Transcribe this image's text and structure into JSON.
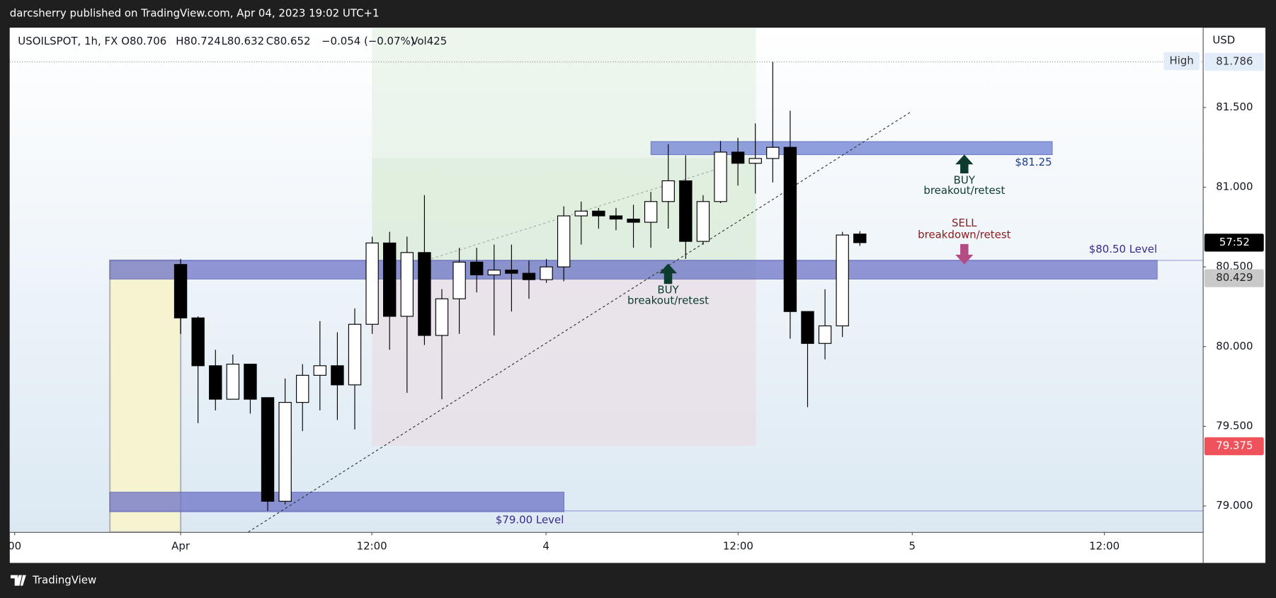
{
  "header": {
    "publisher": "darcsherry published on TradingView.com, Apr 04, 2023 19:02 UTC+1"
  },
  "legend": {
    "symbol": "USOILSPOT, 1h, FX",
    "open": "O80.706",
    "high": "H80.724",
    "low": "L80.632",
    "close": "C80.652",
    "change": "−0.054 (−0.07%)",
    "volume": "Vol425"
  },
  "footer": {
    "brand": "TradingView"
  },
  "chart_data": {
    "type": "candlestick",
    "y_axis_unit": "USD",
    "x": [
      0,
      1,
      2,
      3,
      4,
      5,
      6,
      7,
      8,
      9,
      10,
      11,
      12,
      13,
      14,
      15,
      16,
      17,
      18,
      19,
      20,
      21,
      22,
      23,
      24,
      25,
      26,
      27,
      28,
      29,
      30,
      31,
      32,
      33,
      34,
      35,
      36,
      37,
      38,
      39
    ],
    "open": [
      80.515,
      80.18,
      79.88,
      79.67,
      79.89,
      79.68,
      79.03,
      79.65,
      79.82,
      79.88,
      79.76,
      80.14,
      80.65,
      80.19,
      80.59,
      80.07,
      80.3,
      80.53,
      80.45,
      80.48,
      80.46,
      80.42,
      80.5,
      80.82,
      80.85,
      80.82,
      80.8,
      80.78,
      80.91,
      81.04,
      80.66,
      80.91,
      81.22,
      81.15,
      81.18,
      81.25,
      80.22,
      80.02,
      80.13,
      80.706
    ],
    "high": [
      80.55,
      80.19,
      79.98,
      79.95,
      79.89,
      79.68,
      79.8,
      79.89,
      80.16,
      80.09,
      80.24,
      80.69,
      80.72,
      80.69,
      80.95,
      80.36,
      80.62,
      80.62,
      80.64,
      80.64,
      80.54,
      80.55,
      80.88,
      80.91,
      80.87,
      80.87,
      80.89,
      80.97,
      81.27,
      81.2,
      80.95,
      81.29,
      81.31,
      81.4,
      81.786,
      81.48,
      80.22,
      80.36,
      80.72,
      80.724
    ],
    "low": [
      80.08,
      79.52,
      79.6,
      79.67,
      79.58,
      78.97,
      79.01,
      79.47,
      79.6,
      79.54,
      79.48,
      80.08,
      79.98,
      79.71,
      80.01,
      79.67,
      80.08,
      80.34,
      80.07,
      80.22,
      80.3,
      80.4,
      80.41,
      80.64,
      80.74,
      80.73,
      80.62,
      80.62,
      80.74,
      80.55,
      80.64,
      80.9,
      81.01,
      80.96,
      81.03,
      80.05,
      79.62,
      79.92,
      80.06,
      80.632
    ],
    "close": [
      80.18,
      79.88,
      79.67,
      79.89,
      79.67,
      79.03,
      79.65,
      79.82,
      79.88,
      79.76,
      80.14,
      80.65,
      80.19,
      80.59,
      80.07,
      80.3,
      80.53,
      80.45,
      80.48,
      80.46,
      80.42,
      80.5,
      80.82,
      80.85,
      80.82,
      80.8,
      80.78,
      80.91,
      81.04,
      80.66,
      80.91,
      81.22,
      81.15,
      81.18,
      81.25,
      80.22,
      80.02,
      80.13,
      80.7,
      80.652
    ],
    "up_color": "#ffffff",
    "down_color": "#000000",
    "xlim": [
      -9.81,
      58.69
    ],
    "xticks": [
      {
        "value": -9.53,
        "label": "00"
      },
      {
        "value": 0,
        "label": "Apr"
      },
      {
        "value": 10.98,
        "label": "12:00"
      },
      {
        "value": 20.98,
        "label": "4"
      },
      {
        "value": 32.01,
        "label": "12:00"
      },
      {
        "value": 42.01,
        "label": "5"
      },
      {
        "value": 53.04,
        "label": "12:00"
      }
    ],
    "ylim": [
      78.837,
      82.0
    ],
    "yticks": [
      {
        "value": 79,
        "label": "79.000"
      },
      {
        "value": 79.5,
        "label": "79.500"
      },
      {
        "value": 80,
        "label": "80.000"
      },
      {
        "value": 80.5,
        "label": "80.500"
      },
      {
        "value": 81,
        "label": "81.000"
      },
      {
        "value": 81.5,
        "label": "81.500"
      }
    ],
    "grid": false,
    "price_tags": [
      {
        "value": 81.786,
        "color": "#e3edf9",
        "text_color": "#333333"
      },
      {
        "value": 80.652,
        "label": "57:52",
        "color": "#000000",
        "text_color": "#ffffff"
      },
      {
        "value": 80.429,
        "color": "#c9c9c9",
        "text_color": "#222222"
      },
      {
        "value": 79.375,
        "color": "#f0525b",
        "text_color": "#ffffff"
      }
    ],
    "high_marker": "High",
    "annotations": {
      "level_8125": "$81.25",
      "buy_top": "BUY",
      "buy_top_sub": "breakout/retest",
      "sell": "SELL",
      "sell_sub": "breakdown/retest",
      "level_8050": "$80.50 Level",
      "buy_mid": "BUY",
      "buy_mid_sub": "breakout/retest",
      "level_7900": "$79.00 Level"
    }
  }
}
